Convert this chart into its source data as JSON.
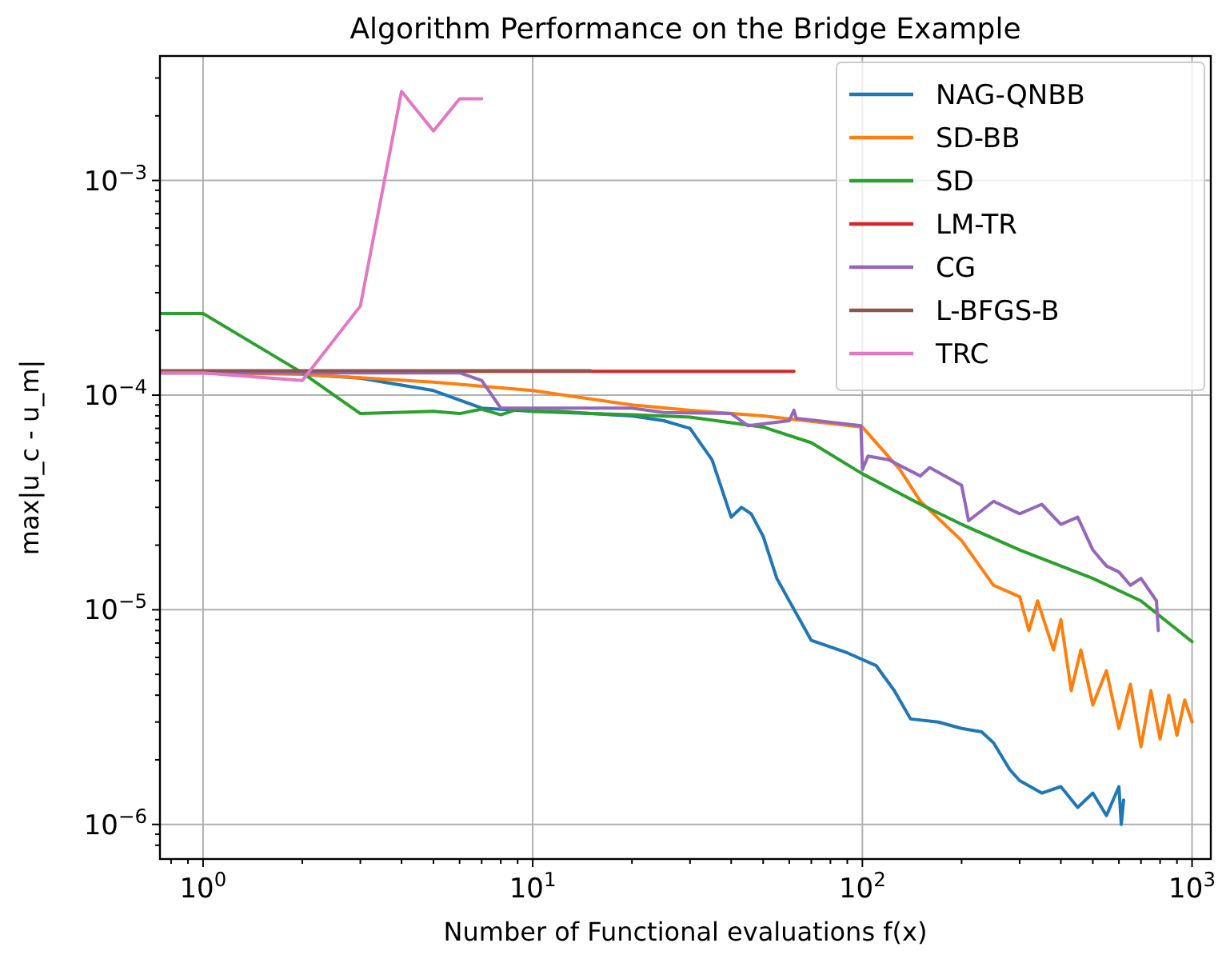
{
  "chart_data": {
    "type": "line",
    "title": "Algorithm Performance on the Bridge Example",
    "xlabel": "Number of Functional evaluations f(x)",
    "ylabel": "max|u_c - u_m|",
    "log": "xy",
    "grid": true,
    "legend": "top right",
    "line_style": "solid",
    "xlim": [
      0.74,
      1140
    ],
    "ylim": [
      6.9e-07,
      0.0038
    ],
    "xticks": [
      {
        "value": 1,
        "label": "10$^{0}$"
      },
      {
        "value": 10,
        "label": "10$^{1}$"
      },
      {
        "value": 100,
        "label": "10$^{2}$"
      },
      {
        "value": 1000,
        "label": "10$^{3}$"
      },
      {
        "value": 0.8,
        "label": null
      },
      {
        "value": 0.9,
        "label": null
      },
      {
        "value": 2,
        "label": null
      },
      {
        "value": 3,
        "label": null
      },
      {
        "value": 4,
        "label": null
      },
      {
        "value": 5,
        "label": null
      },
      {
        "value": 6,
        "label": null
      },
      {
        "value": 7,
        "label": null
      },
      {
        "value": 8,
        "label": null
      },
      {
        "value": 9,
        "label": null
      },
      {
        "value": 20,
        "label": null
      },
      {
        "value": 30,
        "label": null
      },
      {
        "value": 40,
        "label": null
      },
      {
        "value": 50,
        "label": null
      },
      {
        "value": 60,
        "label": null
      },
      {
        "value": 70,
        "label": null
      },
      {
        "value": 80,
        "label": null
      },
      {
        "value": 90,
        "label": null
      },
      {
        "value": 200,
        "label": null
      },
      {
        "value": 300,
        "label": null
      },
      {
        "value": 400,
        "label": null
      },
      {
        "value": 500,
        "label": null
      },
      {
        "value": 600,
        "label": null
      },
      {
        "value": 700,
        "label": null
      },
      {
        "value": 800,
        "label": null
      },
      {
        "value": 900,
        "label": null
      }
    ],
    "yticks": [
      {
        "value": 1e-06,
        "label": "10$^{−6}$"
      },
      {
        "value": 1e-05,
        "label": "10$^{−5}$"
      },
      {
        "value": 0.0001,
        "label": "10$^{−4}$"
      },
      {
        "value": 0.001,
        "label": "10$^{−3}$"
      },
      {
        "value": 8e-07,
        "label": null
      },
      {
        "value": 9e-07,
        "label": null
      },
      {
        "value": 2e-06,
        "label": null
      },
      {
        "value": 3e-06,
        "label": null
      },
      {
        "value": 4e-06,
        "label": null
      },
      {
        "value": 5e-06,
        "label": null
      },
      {
        "value": 6e-06,
        "label": null
      },
      {
        "value": 7e-06,
        "label": null
      },
      {
        "value": 8e-06,
        "label": null
      },
      {
        "value": 9e-06,
        "label": null
      },
      {
        "value": 2e-05,
        "label": null
      },
      {
        "value": 3e-05,
        "label": null
      },
      {
        "value": 4e-05,
        "label": null
      },
      {
        "value": 5e-05,
        "label": null
      },
      {
        "value": 6e-05,
        "label": null
      },
      {
        "value": 7e-05,
        "label": null
      },
      {
        "value": 8e-05,
        "label": null
      },
      {
        "value": 9e-05,
        "label": null
      },
      {
        "value": 0.0002,
        "label": null
      },
      {
        "value": 0.0003,
        "label": null
      },
      {
        "value": 0.0004,
        "label": null
      },
      {
        "value": 0.0005,
        "label": null
      },
      {
        "value": 0.0006,
        "label": null
      },
      {
        "value": 0.0007,
        "label": null
      },
      {
        "value": 0.0008,
        "label": null
      },
      {
        "value": 0.0009,
        "label": null
      },
      {
        "value": 0.002,
        "label": null
      },
      {
        "value": 0.003,
        "label": null
      }
    ],
    "series": [
      {
        "name": "NAG-QNBB",
        "color": "#1f77b4",
        "x": [
          2,
          3,
          5,
          7,
          10,
          15,
          20,
          25,
          30,
          35,
          40,
          43,
          46,
          50,
          55,
          60,
          70,
          90,
          110,
          125,
          140,
          170,
          200,
          230,
          250,
          280,
          300,
          350,
          400,
          450,
          500,
          550,
          600,
          610,
          620
        ],
        "values": [
          0.000125,
          0.00012,
          0.000105,
          8.7e-05,
          8.4e-05,
          8.2e-05,
          8e-05,
          7.6e-05,
          7e-05,
          5e-05,
          2.7e-05,
          3e-05,
          2.8e-05,
          2.2e-05,
          1.4e-05,
          1.1e-05,
          7.2e-06,
          6.3e-06,
          5.5e-06,
          4.2e-06,
          3.1e-06,
          3e-06,
          2.8e-06,
          2.7e-06,
          2.4e-06,
          1.8e-06,
          1.6e-06,
          1.4e-06,
          1.5e-06,
          1.2e-06,
          1.4e-06,
          1.1e-06,
          1.5e-06,
          1e-06,
          1.3e-06
        ]
      },
      {
        "name": "SD-BB",
        "color": "#ff7f0e",
        "x": [
          0.74,
          1,
          2,
          5,
          10,
          20,
          30,
          50,
          100,
          130,
          150,
          200,
          250,
          300,
          320,
          340,
          380,
          400,
          430,
          460,
          500,
          550,
          600,
          650,
          700,
          750,
          800,
          850,
          900,
          950,
          1000
        ],
        "values": [
          0.000127,
          0.000127,
          0.000125,
          0.000115,
          0.000105,
          9e-05,
          8.5e-05,
          8e-05,
          7.1e-05,
          4.5e-05,
          3.2e-05,
          2.1e-05,
          1.3e-05,
          1.15e-05,
          8e-06,
          1.1e-05,
          6.5e-06,
          9e-06,
          4.2e-06,
          6.5e-06,
          3.6e-06,
          5.2e-06,
          2.8e-06,
          4.5e-06,
          2.3e-06,
          4.2e-06,
          2.5e-06,
          4e-06,
          2.6e-06,
          3.8e-06,
          3e-06
        ]
      },
      {
        "name": "SD",
        "color": "#2ca02c",
        "x": [
          0.74,
          1,
          2,
          3,
          5,
          6,
          7,
          8,
          9,
          10,
          12,
          15,
          20,
          30,
          50,
          70,
          100,
          150,
          200,
          300,
          500,
          700,
          1000
        ],
        "values": [
          0.00024,
          0.00024,
          0.000127,
          8.2e-05,
          8.4e-05,
          8.2e-05,
          8.6e-05,
          8.1e-05,
          8.6e-05,
          8.4e-05,
          8.4e-05,
          8.2e-05,
          8.1e-05,
          7.9e-05,
          7.1e-05,
          6e-05,
          4.3e-05,
          3.1e-05,
          2.5e-05,
          1.9e-05,
          1.4e-05,
          1.1e-05,
          7.1e-06
        ]
      },
      {
        "name": "LM-TR",
        "color": "#d62728",
        "x": [
          0.74,
          62
        ],
        "values": [
          0.000129,
          0.000129
        ]
      },
      {
        "name": "CG",
        "color": "#9467bd",
        "x": [
          0.74,
          1,
          6,
          7,
          8,
          15,
          20,
          25,
          40,
          45,
          60,
          62,
          63,
          99,
          100,
          104,
          120,
          150,
          160,
          200,
          210,
          250,
          300,
          350,
          400,
          450,
          500,
          550,
          600,
          650,
          700,
          780,
          790
        ],
        "values": [
          0.000127,
          0.000127,
          0.000127,
          0.000117,
          8.7e-05,
          8.7e-05,
          8.7e-05,
          8.3e-05,
          8.2e-05,
          7.2e-05,
          7.6e-05,
          8.5e-05,
          7.8e-05,
          7.2e-05,
          4.5e-05,
          5.2e-05,
          5e-05,
          4.2e-05,
          4.6e-05,
          3.8e-05,
          2.6e-05,
          3.2e-05,
          2.8e-05,
          3.1e-05,
          2.5e-05,
          2.7e-05,
          1.9e-05,
          1.6e-05,
          1.5e-05,
          1.3e-05,
          1.4e-05,
          1.1e-05,
          8e-06
        ]
      },
      {
        "name": "L-BFGS-B",
        "color": "#8c564b",
        "x": [
          0.74,
          15
        ],
        "values": [
          0.00013,
          0.00013
        ]
      },
      {
        "name": "TRC",
        "color": "#e377c2",
        "x": [
          0.74,
          1,
          2,
          3,
          4,
          5,
          6,
          7
        ],
        "values": [
          0.000127,
          0.000127,
          0.000117,
          0.00026,
          0.0026,
          0.0017,
          0.0024,
          0.0024
        ]
      }
    ]
  }
}
